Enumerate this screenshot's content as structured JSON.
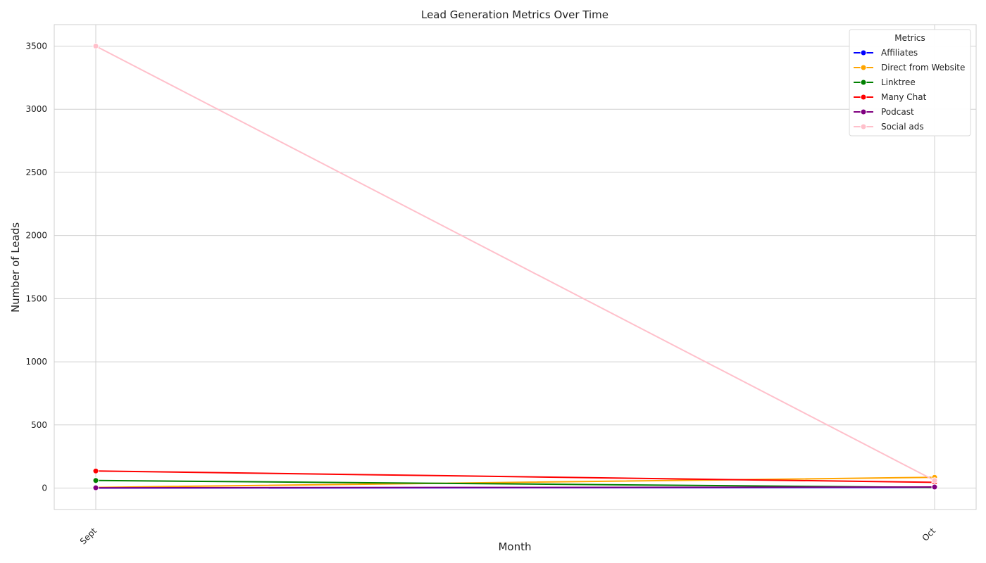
{
  "chart_data": {
    "type": "line",
    "title": "Lead Generation Metrics Over Time",
    "xlabel": "Month",
    "ylabel": "Number of Leads",
    "categories": [
      "Sept",
      "Oct"
    ],
    "yticks": [
      0,
      500,
      1000,
      1500,
      2000,
      2500,
      3000,
      3500
    ],
    "ylim": [
      -170,
      3670
    ],
    "grid": true,
    "legend": {
      "title": "Metrics",
      "placement": "top-right"
    },
    "series": [
      {
        "name": "Affiliates",
        "color": "#0000ff",
        "values": [
          0,
          5
        ]
      },
      {
        "name": "Direct from Website",
        "color": "#ffa500",
        "values": [
          5,
          85
        ]
      },
      {
        "name": "Linktree",
        "color": "#008000",
        "values": [
          60,
          5
        ]
      },
      {
        "name": "Many Chat",
        "color": "#ff0000",
        "values": [
          135,
          45
        ]
      },
      {
        "name": "Podcast",
        "color": "#800080",
        "values": [
          2,
          8
        ]
      },
      {
        "name": "Social ads",
        "color": "#ffc0cb",
        "values": [
          3500,
          60
        ]
      }
    ]
  }
}
